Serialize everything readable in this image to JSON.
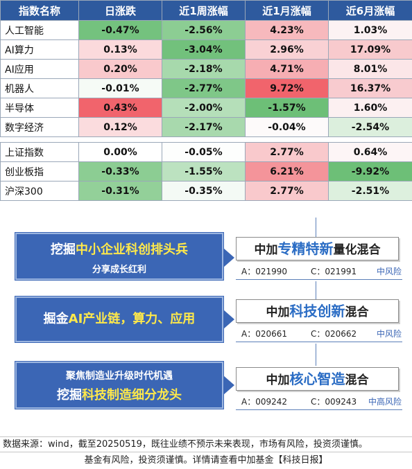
{
  "table": {
    "headers": [
      "指数名称",
      "日涨跌",
      "近1周涨幅",
      "近1月涨幅",
      "近6月涨幅"
    ],
    "group1": [
      {
        "name": "人工智能",
        "cells": [
          {
            "v": "-0.47%",
            "c": "#74c27e"
          },
          {
            "v": "-2.56%",
            "c": "#8ccd93"
          },
          {
            "v": "4.23%",
            "c": "#f7b9bd"
          },
          {
            "v": "1.03%",
            "c": "#fcf2f3"
          }
        ]
      },
      {
        "name": "AI算力",
        "cells": [
          {
            "v": "0.13%",
            "c": "#fbdadc"
          },
          {
            "v": "-3.04%",
            "c": "#72c17c"
          },
          {
            "v": "2.96%",
            "c": "#f9d1d4"
          },
          {
            "v": "17.09%",
            "c": "#f8cacd"
          }
        ]
      },
      {
        "name": "AI应用",
        "cells": [
          {
            "v": "0.20%",
            "c": "#f9c9cc"
          },
          {
            "v": "-2.18%",
            "c": "#a7d9ac"
          },
          {
            "v": "4.71%",
            "c": "#f6aeb3"
          },
          {
            "v": "8.01%",
            "c": "#fbe6e8"
          }
        ]
      },
      {
        "name": "机器人",
        "cells": [
          {
            "v": "-0.01%",
            "c": "#f6fbf6"
          },
          {
            "v": "-2.77%",
            "c": "#7fc788"
          },
          {
            "v": "9.72%",
            "c": "#f1646c"
          },
          {
            "v": "16.37%",
            "c": "#f8cbcf"
          }
        ]
      },
      {
        "name": "半导体",
        "cells": [
          {
            "v": "0.43%",
            "c": "#f1646c"
          },
          {
            "v": "-2.00%",
            "c": "#b5dfb9"
          },
          {
            "v": "-1.57%",
            "c": "#6dbf77"
          },
          {
            "v": "1.60%",
            "c": "#fcf0f1"
          }
        ]
      },
      {
        "name": "数字经济",
        "cells": [
          {
            "v": "0.12%",
            "c": "#fbdcde"
          },
          {
            "v": "-2.17%",
            "c": "#a8d9ad"
          },
          {
            "v": "-0.04%",
            "c": "#fdfafa"
          },
          {
            "v": "-2.54%",
            "c": "#dcefdd"
          }
        ]
      }
    ],
    "group2": [
      {
        "name": "上证指数",
        "cells": [
          {
            "v": "0.00%",
            "c": "#ffffff"
          },
          {
            "v": "-0.05%",
            "c": "#fdfefd"
          },
          {
            "v": "2.77%",
            "c": "#f9c9cc"
          },
          {
            "v": "0.64%",
            "c": "#fdf5f6"
          }
        ]
      },
      {
        "name": "创业板指",
        "cells": [
          {
            "v": "-0.33%",
            "c": "#8ccd93"
          },
          {
            "v": "-1.55%",
            "c": "#bce2c0"
          },
          {
            "v": "6.21%",
            "c": "#f4949a"
          },
          {
            "v": "-9.92%",
            "c": "#6dbf77"
          }
        ]
      },
      {
        "name": "沪深300",
        "cells": [
          {
            "v": "-0.31%",
            "c": "#93d099"
          },
          {
            "v": "-0.35%",
            "c": "#f4faf5"
          },
          {
            "v": "2.77%",
            "c": "#f9c9cc"
          },
          {
            "v": "-2.51%",
            "c": "#ddf0de"
          }
        ]
      }
    ]
  },
  "themes": [
    {
      "prefix": "挖掘",
      "highlight": "中小企业科创排头兵",
      "suffix": "",
      "line2": "分享成长红利"
    },
    {
      "prefix": "掘金",
      "highlight": "AI产业链，",
      "suffix": "算力、应用",
      "line2": ""
    },
    {
      "prefix": "",
      "highlight": "",
      "suffix": "",
      "line1b": "聚焦制造业升级时代机遇",
      "line2_prefix": "挖掘",
      "line2_highlight": "科技制造细分龙头"
    }
  ],
  "funds": [
    {
      "pre": "中加",
      "kw": "专精特新",
      "post": "量化混合",
      "a_code": "A：021990",
      "c_code": "C：021991",
      "risk": "中风险"
    },
    {
      "pre": "中加",
      "kw": "科技创新",
      "post": "混合",
      "a_code": "A：020661",
      "c_code": "C：020662",
      "risk": "中风险"
    },
    {
      "pre": "中加",
      "kw": "核心智造",
      "post": "混合",
      "a_code": "A：009242",
      "c_code": "C：009243",
      "risk": "中高风险"
    }
  ],
  "footer": {
    "line1": "数据来源：wind，截至20250519，既往业绩不预示未来表现，市场有风险，投资须谨慎。",
    "line2": "基金有风险，投资须谨慎。详情请查看中加基金【科技日报】"
  }
}
